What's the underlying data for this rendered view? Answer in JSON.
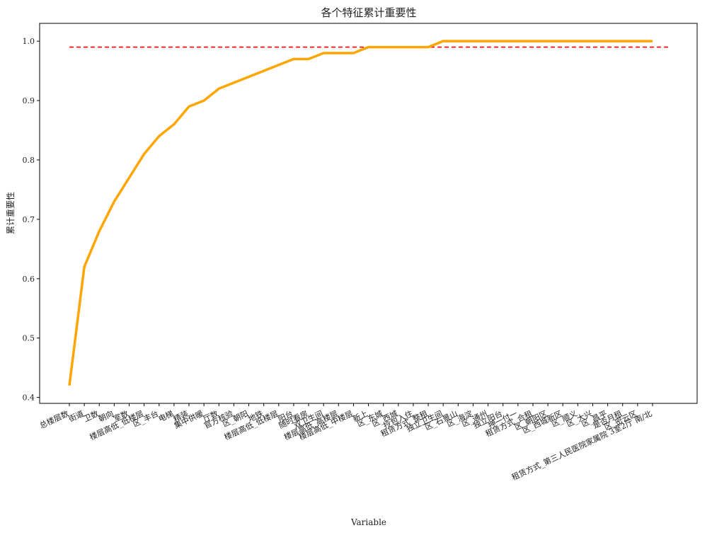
{
  "chart_data": {
    "type": "line",
    "title": "各个特征累计重要性",
    "xlabel": "Variable",
    "ylabel": "累计重要性",
    "ylim": [
      0.39,
      1.03
    ],
    "yticks": [
      0.4,
      0.5,
      0.6,
      0.7,
      0.8,
      0.9,
      1.0
    ],
    "ytick_labels": [
      "0.4",
      "0.5",
      "0.6",
      "0.7",
      "0.8",
      "0.9",
      "1.0"
    ],
    "grid": false,
    "line_color": "#FFA500",
    "threshold": {
      "value": 0.99,
      "color": "#FF0000",
      "style": "dashed"
    },
    "categories": [
      "总楼层数",
      "街道",
      "卫数",
      "朝向",
      "室数",
      "楼层高低_低楼层",
      "区_丰台",
      "电梯",
      "精装",
      "集中供暖",
      "厅数",
      "官方核验",
      "区_朝阳",
      "地铁",
      "楼层高低_低楼层",
      "阳台",
      "随时看房",
      "双卫生间",
      "楼层高低_高楼层",
      "楼层高低_中楼层",
      "新上",
      "区_东城",
      "区_西城",
      "拎包入住",
      "租赁方式_整租",
      "独立卫生间",
      "区_石景山",
      "区_海淀",
      "区_通州",
      "独立阳台",
      "押一付一",
      "租赁方式_合租",
      "区_朝阳区",
      "区_西城新区",
      "区_顺义",
      "区_大兴",
      "区_昌平",
      "是否月租",
      "区_密云区",
      "租赁方式_第三人民医院家属院 3室2厅 南/北"
    ],
    "values": [
      0.42,
      0.62,
      0.68,
      0.73,
      0.77,
      0.81,
      0.84,
      0.86,
      0.89,
      0.9,
      0.92,
      0.93,
      0.94,
      0.95,
      0.96,
      0.97,
      0.97,
      0.98,
      0.98,
      0.98,
      0.99,
      0.99,
      0.99,
      0.99,
      0.99,
      1.0,
      1.0,
      1.0,
      1.0,
      1.0,
      1.0,
      1.0,
      1.0,
      1.0,
      1.0,
      1.0,
      1.0,
      1.0,
      1.0,
      1.0
    ]
  }
}
